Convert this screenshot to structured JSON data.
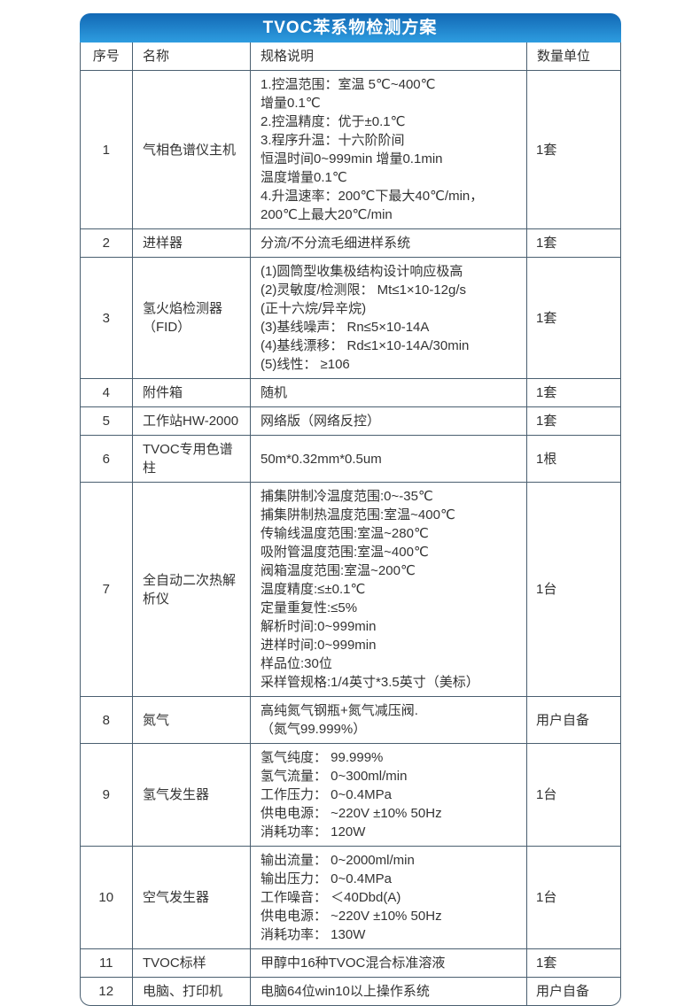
{
  "page": {
    "title": "TVOC苯系物检测方案"
  },
  "colors": {
    "header_gradient_top": "#1268b4",
    "header_gradient_bottom": "#2e9de0",
    "grid_border": "#4a5f70",
    "text": "#333333",
    "title_text": "#ffffff"
  },
  "table": {
    "columns": [
      "序号",
      "名称",
      "规格说明",
      "数量单位"
    ],
    "rows": [
      {
        "no": "1",
        "name": "气相色谱仪主机",
        "spec": [
          "1.控温范围：室温 5℃~400℃",
          "增量0.1℃",
          "2.控温精度：优于±0.1℃",
          "3.程序升温：十六阶阶间",
          "恒温时间0~999min 增量0.1min",
          "温度增量0.1℃",
          "4.升温速率：200℃下最大40℃/min，",
          "200℃上最大20℃/min"
        ],
        "qty": "1套"
      },
      {
        "no": "2",
        "name": "进样器",
        "spec": [
          "分流/不分流毛细进样系统"
        ],
        "qty": "1套"
      },
      {
        "no": "3",
        "name": "氢火焰检测器（FID）",
        "spec": [
          "(1)圆筒型收集极结构设计响应极高",
          "(2)灵敏度/检测限： Mt≤1×10-12g/s",
          "(正十六烷/异辛烷)",
          "(3)基线噪声： Rn≤5×10-14A",
          "(4)基线漂移： Rd≤1×10-14A/30min",
          "(5)线性： ≥106"
        ],
        "qty": "1套"
      },
      {
        "no": "4",
        "name": "附件箱",
        "spec": [
          "随机"
        ],
        "qty": "1套"
      },
      {
        "no": "5",
        "name": "工作站HW-2000",
        "spec": [
          "网络版（网络反控）"
        ],
        "qty": "1套"
      },
      {
        "no": "6",
        "name": "TVOC专用色谱柱",
        "spec": [
          "50m*0.32mm*0.5um"
        ],
        "qty": "1根"
      },
      {
        "no": "7",
        "name": "全自动二次热解析仪",
        "spec": [
          "捕集阱制冷温度范围:0~-35℃",
          "捕集阱制热温度范围:室温~400℃",
          "传输线温度范围:室温~280℃",
          "吸附管温度范围:室温~400℃",
          "阀箱温度范围:室温~200℃",
          "温度精度:≤±0.1℃",
          "定量重复性:≤5%",
          "解析时间:0~999min",
          "进样时间:0~999min",
          "样品位:30位",
          "采样管规格:1/4英寸*3.5英寸（美标）"
        ],
        "qty": "1台"
      },
      {
        "no": "8",
        "name": "氮气",
        "spec": [
          "高纯氮气钢瓶+氮气减压阀.",
          "（氮气99.999%）"
        ],
        "qty": "用户自备"
      },
      {
        "no": "9",
        "name": "氢气发生器",
        "spec": [
          "氢气纯度： 99.999%",
          "氢气流量： 0~300ml/min",
          "工作压力： 0~0.4MPa",
          "供电电源： ~220V ±10% 50Hz",
          "消耗功率： 120W"
        ],
        "qty": "1台"
      },
      {
        "no": "10",
        "name": "空气发生器",
        "spec": [
          "输出流量： 0~2000ml/min",
          "输出压力： 0~0.4MPa",
          "工作噪音： ＜40Dbd(A)",
          "供电电源： ~220V ±10% 50Hz",
          "消耗功率： 130W"
        ],
        "qty": "1台"
      },
      {
        "no": "11",
        "name": "TVOC标样",
        "spec": [
          "甲醇中16种TVOC混合标准溶液"
        ],
        "qty": "1套"
      },
      {
        "no": "12",
        "name": "电脑、打印机",
        "spec": [
          "电脑64位win10以上操作系统"
        ],
        "qty": "用户自备"
      }
    ]
  }
}
